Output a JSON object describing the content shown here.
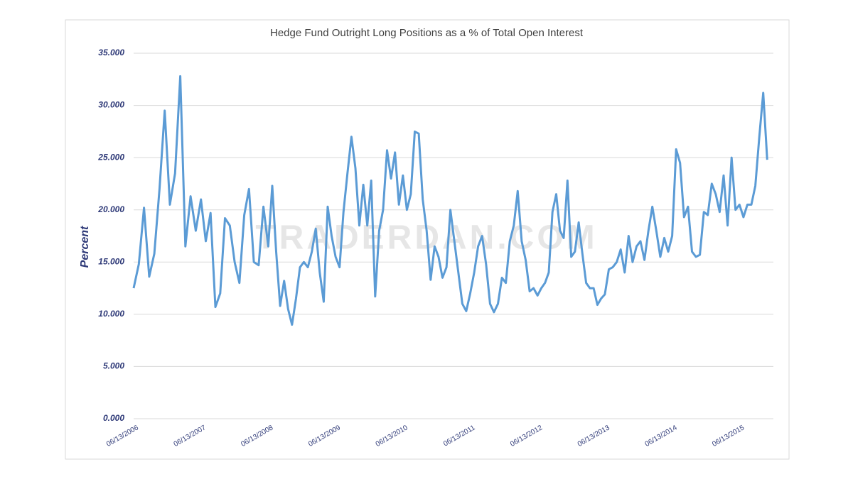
{
  "chart_data": {
    "type": "line",
    "title": "Hedge Fund Outright Long Positions as a % of Total Open Interest",
    "y_label": "Percent",
    "watermark": "TRADERDAN.COM",
    "categories": [
      "06/13/2006",
      null,
      null,
      null,
      null,
      null,
      null,
      null,
      null,
      null,
      null,
      null,
      null,
      "06/13/2007",
      null,
      null,
      null,
      null,
      null,
      null,
      null,
      null,
      null,
      null,
      null,
      null,
      null,
      "06/13/2008",
      null,
      null,
      null,
      null,
      null,
      null,
      null,
      null,
      null,
      null,
      null,
      null,
      null,
      null,
      null,
      null,
      "06/13/2009",
      null,
      null,
      null,
      null,
      null,
      null,
      null,
      null,
      null,
      null,
      null,
      null,
      null,
      null,
      null,
      null,
      "06/13/2010",
      null,
      null,
      null,
      null,
      null,
      null,
      null,
      null,
      null,
      null,
      null,
      null,
      null,
      null,
      null,
      null,
      "06/13/2011",
      null,
      null,
      null,
      null,
      null,
      null,
      null,
      null,
      null,
      null,
      null,
      null,
      null,
      null,
      null,
      null,
      "06/13/2012",
      null,
      null,
      null,
      null,
      null,
      null,
      null,
      null,
      null,
      null,
      null,
      null,
      null,
      null,
      null,
      null,
      null,
      "06/13/2013",
      null,
      null,
      null,
      null,
      null,
      null,
      null,
      null,
      null,
      null,
      null,
      null,
      null,
      null,
      null,
      null,
      "06/13/2014",
      null,
      null,
      null,
      null,
      null,
      null,
      null,
      null,
      null,
      null,
      null,
      null,
      null,
      null,
      null,
      null,
      "06/13/2015",
      null,
      null,
      null,
      null,
      null,
      null,
      null
    ],
    "series": [
      {
        "name": "Percent",
        "color": "#5b9bd5",
        "values": [
          12.5,
          14.8,
          20.2,
          13.6,
          15.8,
          22,
          29.5,
          20.5,
          23.5,
          32.8,
          16.5,
          21.3,
          18,
          21,
          17,
          19.7,
          10.7,
          12,
          19.2,
          18.5,
          15,
          13,
          19.5,
          22,
          15,
          14.7,
          20.3,
          16.5,
          22.3,
          16,
          10.8,
          13.2,
          10.5,
          9.0,
          11.5,
          14.5,
          15,
          14.5,
          16,
          18.2,
          14,
          11.2,
          20.3,
          17.5,
          15.5,
          14.5,
          19.8,
          23.5,
          27,
          24,
          18.5,
          22.4,
          18.5,
          22.8,
          11.7,
          18,
          20,
          25.7,
          23,
          25.5,
          20.5,
          23.3,
          20,
          21.5,
          27.5,
          27.3,
          21,
          18,
          13.3,
          16.5,
          15.5,
          13.5,
          14.5,
          20,
          17,
          14,
          11,
          10.3,
          12,
          14,
          16.5,
          17.5,
          14.8,
          11,
          10.2,
          11,
          13.5,
          13,
          17,
          18.5,
          21.8,
          17,
          15.2,
          12.2,
          12.5,
          11.8,
          12.5,
          13,
          14,
          19.8,
          21.5,
          18,
          17.3,
          22.8,
          15.5,
          16,
          18.8,
          15.8,
          13,
          12.5,
          12.5,
          10.9,
          11.5,
          11.9,
          14.3,
          14.5,
          15,
          16.2,
          14,
          17.5,
          15,
          16.5,
          17,
          15.2,
          18,
          20.3,
          18,
          15.5,
          17.3,
          16,
          17.5,
          25.8,
          24.5,
          19.3,
          20.3,
          16,
          15.5,
          15.7,
          19.8,
          19.5,
          22.5,
          21.5,
          19.8,
          23.3,
          18.5,
          25,
          20,
          20.5,
          19.3,
          20.5,
          20.5,
          22.3,
          27,
          31.2,
          24.8
        ]
      }
    ],
    "ylim": [
      0,
      35
    ],
    "yticks": [
      {
        "value": 0,
        "label": "0.000"
      },
      {
        "value": 5,
        "label": "5.000"
      },
      {
        "value": 10,
        "label": "10.000"
      },
      {
        "value": 15,
        "label": "15.000"
      },
      {
        "value": 20,
        "label": "20.000"
      },
      {
        "value": 25,
        "label": "25.000"
      },
      {
        "value": 30,
        "label": "30.000"
      },
      {
        "value": 35,
        "label": "35.000"
      }
    ],
    "grid": true
  }
}
